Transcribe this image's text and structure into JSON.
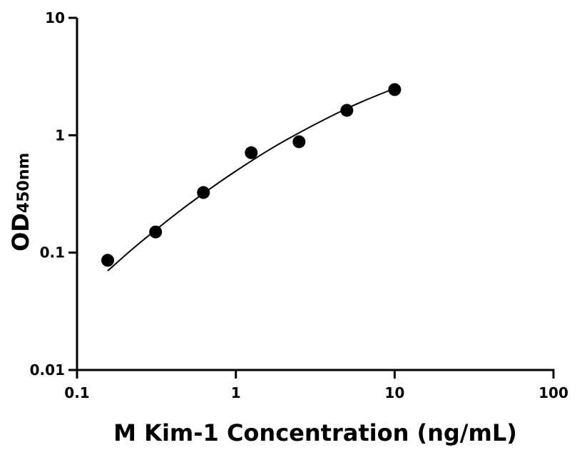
{
  "chart_data": {
    "type": "scatter",
    "title": "",
    "xlabel": "M Kim-1 Concentration (ng/mL)",
    "ylabel_main": "OD",
    "ylabel_sub": "450nm",
    "x_scale": "log",
    "y_scale": "log",
    "xlim": [
      0.1,
      100
    ],
    "ylim": [
      0.01,
      10
    ],
    "x_ticks": [
      {
        "v": 0.1,
        "label": "0.1"
      },
      {
        "v": 1,
        "label": "1"
      },
      {
        "v": 10,
        "label": "10"
      },
      {
        "v": 100,
        "label": "100"
      }
    ],
    "y_ticks": [
      {
        "v": 0.01,
        "label": "0.01"
      },
      {
        "v": 0.1,
        "label": "0.1"
      },
      {
        "v": 1,
        "label": "1"
      },
      {
        "v": 10,
        "label": "10"
      }
    ],
    "grid": false,
    "points": [
      {
        "x": 0.156,
        "y": 0.086
      },
      {
        "x": 0.3125,
        "y": 0.15
      },
      {
        "x": 0.625,
        "y": 0.325
      },
      {
        "x": 1.25,
        "y": 0.71
      },
      {
        "x": 2.5,
        "y": 0.88
      },
      {
        "x": 5,
        "y": 1.63
      },
      {
        "x": 10,
        "y": 2.45
      }
    ],
    "fit_curve": [
      {
        "x": 0.156,
        "y": 0.07
      },
      {
        "x": 0.25,
        "y": 0.122
      },
      {
        "x": 0.5,
        "y": 0.256
      },
      {
        "x": 1,
        "y": 0.495
      },
      {
        "x": 2,
        "y": 0.887
      },
      {
        "x": 5,
        "y": 1.69
      },
      {
        "x": 10,
        "y": 2.51
      }
    ],
    "colors": {
      "points": "#000000",
      "curve": "#000000",
      "axes": "#000000"
    }
  }
}
